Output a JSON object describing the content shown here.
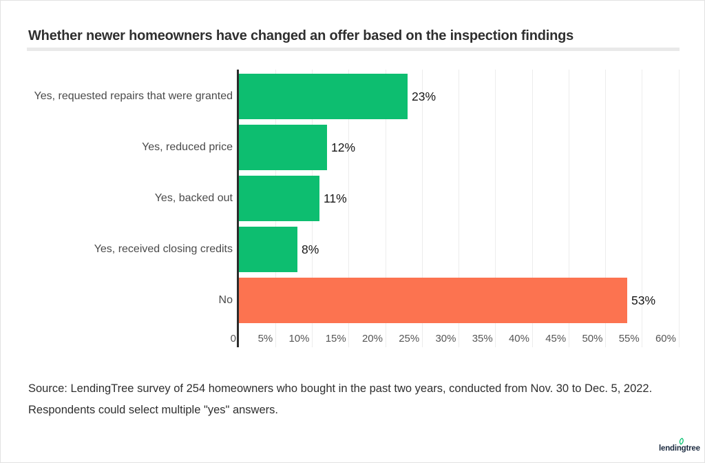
{
  "title": "Whether newer homeowners have changed an offer based on the inspection findings",
  "chart_data": {
    "type": "bar",
    "orientation": "horizontal",
    "title": "Whether newer homeowners have changed an offer based on the inspection findings",
    "categories": [
      "Yes, requested repairs that were granted",
      "Yes, reduced price",
      "Yes, backed out",
      "Yes, received closing credits",
      "No"
    ],
    "values": [
      23,
      12,
      11,
      8,
      53
    ],
    "value_labels": [
      "23%",
      "12%",
      "11%",
      "8%",
      "53%"
    ],
    "bar_colors": [
      "#0dbe70",
      "#0dbe70",
      "#0dbe70",
      "#0dbe70",
      "#fc7350"
    ],
    "xlabel": "",
    "ylabel": "",
    "xlim": [
      0,
      60
    ],
    "x_tick_values": [
      0,
      5,
      10,
      15,
      20,
      25,
      30,
      35,
      40,
      45,
      50,
      55,
      60
    ],
    "x_tick_labels": [
      "0",
      "5%",
      "10%",
      "15%",
      "20%",
      "25%",
      "30%",
      "35%",
      "40%",
      "45%",
      "50%",
      "55%",
      "60%"
    ],
    "grid": "vertical",
    "legend": "none"
  },
  "source": {
    "line1": "Source: LendingTree survey of 254 homeowners who bought in the past two years, conducted from Nov. 30 to Dec. 5, 2022.",
    "line2": "Respondents could select multiple \"yes\" answers."
  },
  "logo": {
    "text": "lendingtree"
  },
  "colors": {
    "bar_green": "#0dbe70",
    "bar_orange": "#fc7350",
    "axis": "#2b2b2b",
    "grid": "#ececec",
    "title": "#2f2f2f",
    "category_label": "#4a4a4a",
    "tick_label": "#555555",
    "value_label": "#171717",
    "divider": "#e9e9e9",
    "source_text": "#2e2e2e",
    "logo_text": "#1c2b40",
    "logo_leaf": "#00c06d"
  }
}
